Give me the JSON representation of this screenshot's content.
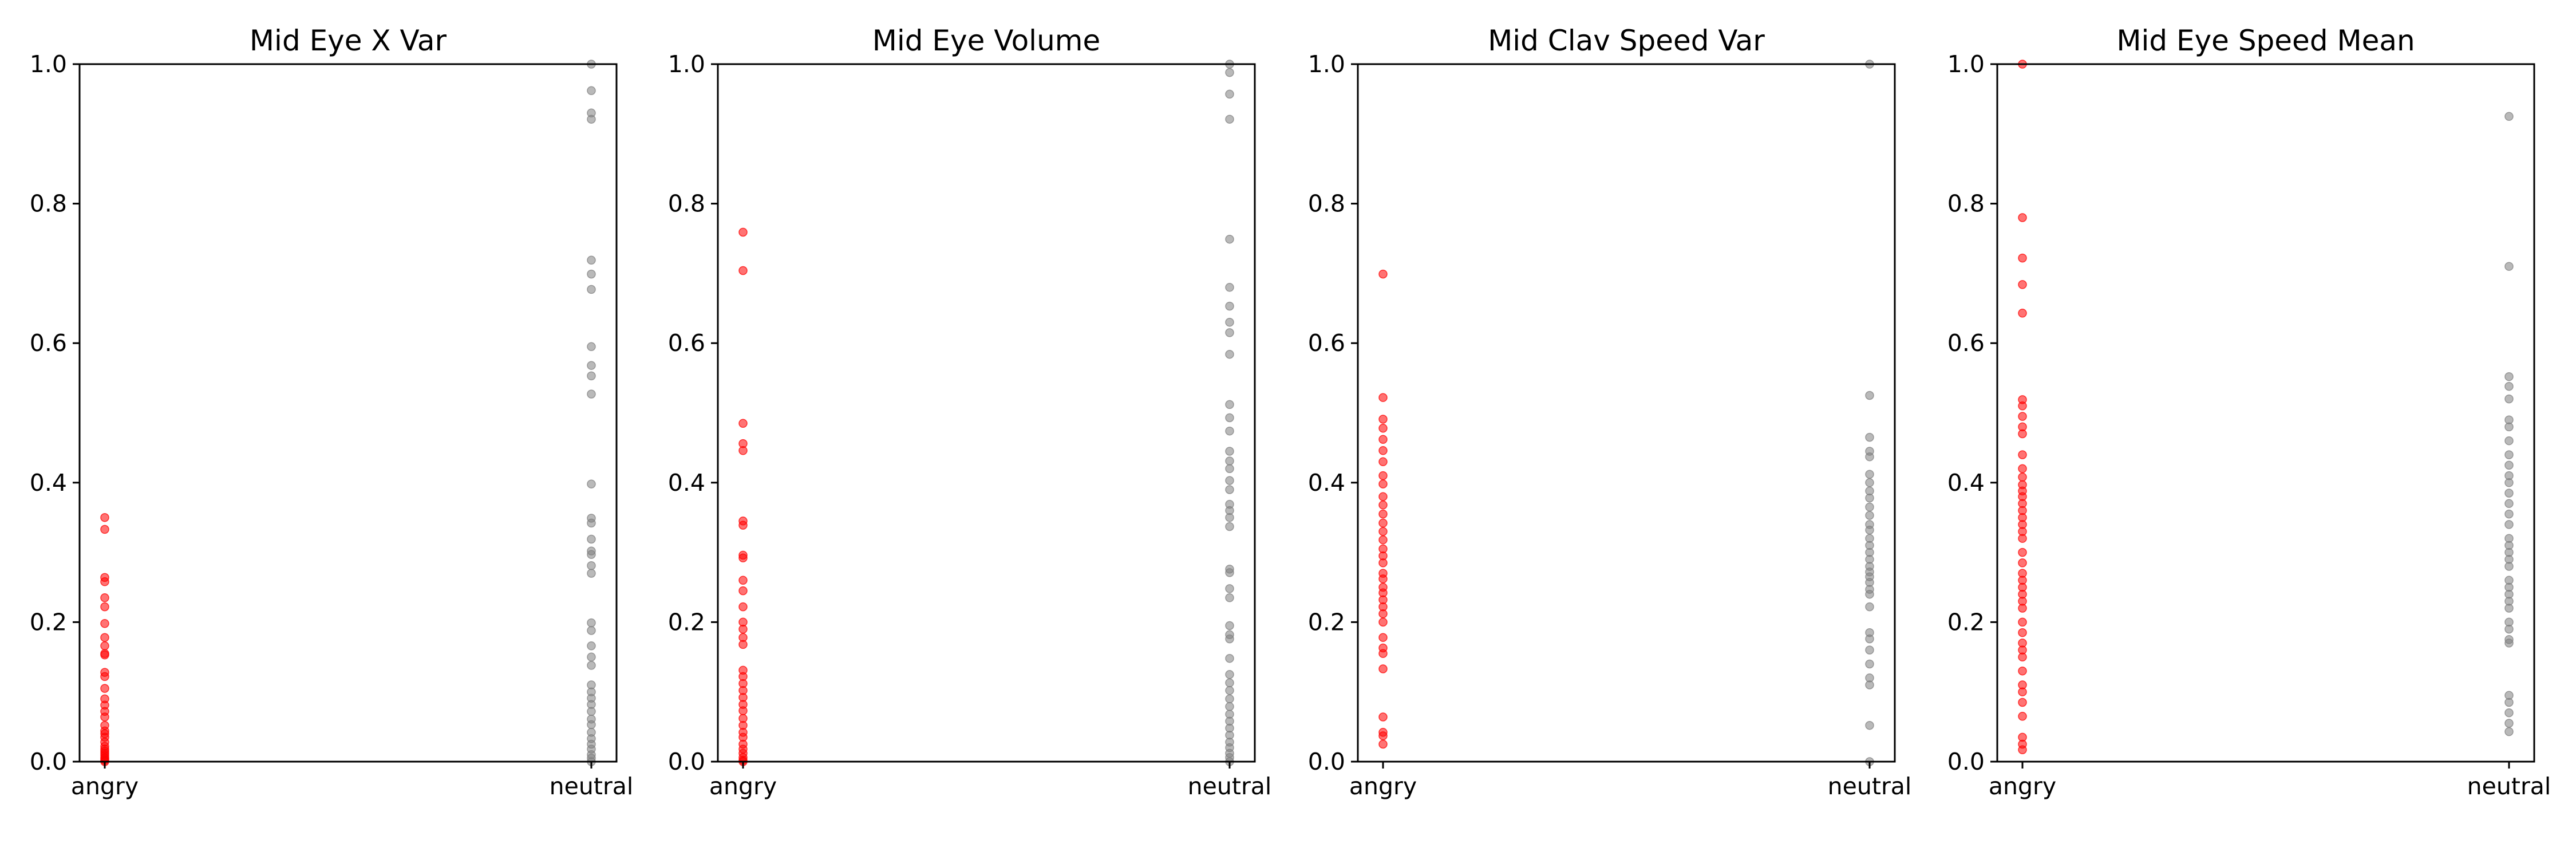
{
  "chart_data": [
    {
      "type": "scatter",
      "title": "Mid Eye X Var",
      "categories": [
        "angry",
        "neutral"
      ],
      "ylim": [
        0,
        1
      ],
      "yticks": [
        "0.0",
        "0.2",
        "0.4",
        "0.6",
        "0.8",
        "1.0"
      ],
      "grid": false,
      "series": [
        {
          "category": "angry",
          "color": "#ff0000",
          "values": [
            0.35,
            0.333,
            0.264,
            0.258,
            0.235,
            0.222,
            0.198,
            0.178,
            0.166,
            0.155,
            0.153,
            0.128,
            0.122,
            0.105,
            0.09,
            0.081,
            0.072,
            0.064,
            0.052,
            0.044,
            0.04,
            0.035,
            0.028,
            0.022,
            0.018,
            0.015,
            0.012,
            0.009,
            0.006,
            0.004,
            0.002,
            0.0
          ]
        },
        {
          "category": "neutral",
          "color": "#808080",
          "values": [
            1.0,
            0.962,
            0.93,
            0.921,
            0.719,
            0.699,
            0.677,
            0.595,
            0.568,
            0.553,
            0.527,
            0.398,
            0.349,
            0.342,
            0.319,
            0.302,
            0.297,
            0.281,
            0.27,
            0.199,
            0.188,
            0.166,
            0.15,
            0.138,
            0.11,
            0.1,
            0.091,
            0.082,
            0.072,
            0.061,
            0.053,
            0.042,
            0.033,
            0.025,
            0.018,
            0.01,
            0.005,
            0.0
          ]
        }
      ]
    },
    {
      "type": "scatter",
      "title": "Mid Eye Volume",
      "categories": [
        "angry",
        "neutral"
      ],
      "ylim": [
        0,
        1
      ],
      "yticks": [
        "0.0",
        "0.2",
        "0.4",
        "0.6",
        "0.8",
        "1.0"
      ],
      "grid": false,
      "series": [
        {
          "category": "angry",
          "color": "#ff0000",
          "values": [
            0.759,
            0.704,
            0.485,
            0.456,
            0.446,
            0.345,
            0.339,
            0.296,
            0.292,
            0.26,
            0.245,
            0.222,
            0.2,
            0.19,
            0.178,
            0.168,
            0.131,
            0.122,
            0.112,
            0.102,
            0.092,
            0.082,
            0.073,
            0.062,
            0.052,
            0.042,
            0.035,
            0.025,
            0.018,
            0.012,
            0.006,
            0.002,
            0.0
          ]
        },
        {
          "category": "neutral",
          "color": "#808080",
          "values": [
            1.0,
            0.988,
            0.957,
            0.921,
            0.749,
            0.68,
            0.653,
            0.63,
            0.615,
            0.584,
            0.512,
            0.493,
            0.474,
            0.445,
            0.431,
            0.42,
            0.403,
            0.39,
            0.369,
            0.36,
            0.35,
            0.337,
            0.276,
            0.271,
            0.248,
            0.235,
            0.195,
            0.182,
            0.176,
            0.148,
            0.125,
            0.113,
            0.102,
            0.09,
            0.079,
            0.068,
            0.058,
            0.048,
            0.038,
            0.028,
            0.02,
            0.012,
            0.006,
            0.0
          ]
        }
      ]
    },
    {
      "type": "scatter",
      "title": "Mid Clav Speed Var",
      "categories": [
        "angry",
        "neutral"
      ],
      "ylim": [
        0,
        1
      ],
      "yticks": [
        "0.0",
        "0.2",
        "0.4",
        "0.6",
        "0.8",
        "1.0"
      ],
      "grid": false,
      "series": [
        {
          "category": "angry",
          "color": "#ff0000",
          "values": [
            0.699,
            0.522,
            0.491,
            0.478,
            0.462,
            0.446,
            0.43,
            0.41,
            0.398,
            0.38,
            0.368,
            0.355,
            0.342,
            0.33,
            0.318,
            0.305,
            0.295,
            0.285,
            0.27,
            0.262,
            0.25,
            0.242,
            0.232,
            0.222,
            0.212,
            0.2,
            0.178,
            0.163,
            0.155,
            0.133,
            0.064,
            0.042,
            0.037,
            0.025
          ]
        },
        {
          "category": "neutral",
          "color": "#808080",
          "values": [
            1.0,
            0.525,
            0.465,
            0.445,
            0.437,
            0.412,
            0.4,
            0.388,
            0.378,
            0.365,
            0.353,
            0.34,
            0.332,
            0.32,
            0.31,
            0.3,
            0.29,
            0.28,
            0.272,
            0.265,
            0.257,
            0.247,
            0.24,
            0.222,
            0.185,
            0.176,
            0.16,
            0.14,
            0.12,
            0.11,
            0.052,
            0.0
          ]
        }
      ]
    },
    {
      "type": "scatter",
      "title": "Mid Eye Speed Mean",
      "categories": [
        "angry",
        "neutral"
      ],
      "ylim": [
        0,
        1
      ],
      "yticks": [
        "0.0",
        "0.2",
        "0.4",
        "0.6",
        "0.8",
        "1.0"
      ],
      "grid": false,
      "series": [
        {
          "category": "angry",
          "color": "#ff0000",
          "values": [
            1.0,
            0.78,
            0.722,
            0.684,
            0.643,
            0.519,
            0.51,
            0.495,
            0.48,
            0.47,
            0.44,
            0.42,
            0.408,
            0.397,
            0.388,
            0.38,
            0.37,
            0.36,
            0.35,
            0.34,
            0.33,
            0.32,
            0.3,
            0.285,
            0.27,
            0.26,
            0.25,
            0.24,
            0.23,
            0.22,
            0.2,
            0.185,
            0.17,
            0.16,
            0.15,
            0.13,
            0.11,
            0.1,
            0.085,
            0.065,
            0.035,
            0.025,
            0.017
          ]
        },
        {
          "category": "neutral",
          "color": "#808080",
          "values": [
            0.925,
            0.71,
            0.552,
            0.538,
            0.52,
            0.49,
            0.48,
            0.46,
            0.44,
            0.425,
            0.41,
            0.4,
            0.385,
            0.37,
            0.355,
            0.34,
            0.32,
            0.31,
            0.3,
            0.29,
            0.28,
            0.26,
            0.25,
            0.24,
            0.23,
            0.22,
            0.2,
            0.19,
            0.175,
            0.17,
            0.095,
            0.085,
            0.07,
            0.055,
            0.043
          ]
        }
      ]
    }
  ]
}
